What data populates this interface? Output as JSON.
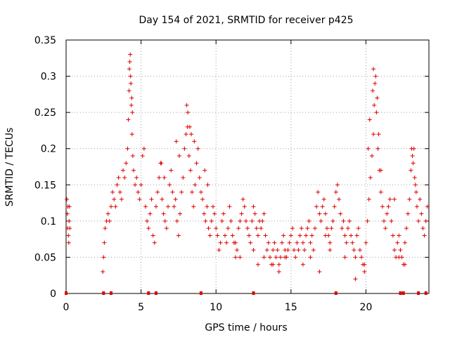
{
  "colors": {
    "series": "#dd0000",
    "grid": "#a0a0a0",
    "axis": "#000000"
  },
  "chart_data": {
    "type": "scatter",
    "title": "Day 154 of 2021, SRMTID for receiver p425",
    "xlabel": "GPS time / hours",
    "ylabel": "SRMTID / TECUs",
    "xlim": [
      0,
      24.2
    ],
    "ylim": [
      0,
      0.35
    ],
    "grid": true,
    "x_ticks": [
      0,
      5,
      10,
      15,
      20
    ],
    "x_tick_labels": [
      "0",
      "5",
      "10",
      "15",
      "20"
    ],
    "y_ticks": [
      0,
      0.05,
      0.1,
      0.15,
      0.2,
      0.25,
      0.3,
      0.35
    ],
    "y_tick_labels": [
      "0",
      "0.05",
      "0.1",
      "0.15",
      "0.2",
      "0.25",
      "0.3",
      "0.35"
    ],
    "marker": "plus",
    "series": [
      {
        "name": "SRMTID",
        "x": [
          0.05,
          0.08,
          0.1,
          0.12,
          0.15,
          0.18,
          0.2,
          0.22,
          0.25,
          2.45,
          2.5,
          2.55,
          2.6,
          2.7,
          2.8,
          2.9,
          3.0,
          3.1,
          3.2,
          3.3,
          3.4,
          3.5,
          3.6,
          3.7,
          3.8,
          3.9,
          4.0,
          4.1,
          4.15,
          4.2,
          4.25,
          4.3,
          4.35,
          4.4,
          4.45,
          4.5,
          4.6,
          4.7,
          4.8,
          4.9,
          5.0,
          5.1,
          5.2,
          5.3,
          5.4,
          5.5,
          5.6,
          5.7,
          5.8,
          5.9,
          6.0,
          6.1,
          6.2,
          6.3,
          6.4,
          6.5,
          6.6,
          6.7,
          6.8,
          6.9,
          7.0,
          7.1,
          7.2,
          7.3,
          7.4,
          7.5,
          7.6,
          7.7,
          7.8,
          7.9,
          8.0,
          8.1,
          8.2,
          8.3,
          8.4,
          8.5,
          8.6,
          8.7,
          8.8,
          8.9,
          9.0,
          9.1,
          9.2,
          9.3,
          9.4,
          9.5,
          9.6,
          9.7,
          9.8,
          9.9,
          10.0,
          10.1,
          10.2,
          10.3,
          10.4,
          10.5,
          10.6,
          10.7,
          10.8,
          10.9,
          11.0,
          11.1,
          11.2,
          11.3,
          11.4,
          11.5,
          11.6,
          11.7,
          11.8,
          11.9,
          12.0,
          12.1,
          12.2,
          12.3,
          12.4,
          12.5,
          12.6,
          12.7,
          12.8,
          12.9,
          13.0,
          13.1,
          13.2,
          13.3,
          13.4,
          13.5,
          13.6,
          13.7,
          13.8,
          13.9,
          14.0,
          14.1,
          14.2,
          14.3,
          14.4,
          14.5,
          14.6,
          14.7,
          14.8,
          14.9,
          15.0,
          15.1,
          15.2,
          15.3,
          15.4,
          15.5,
          15.6,
          15.7,
          15.8,
          15.9,
          16.0,
          16.1,
          16.2,
          16.3,
          16.4,
          16.5,
          16.6,
          16.7,
          16.8,
          16.9,
          17.0,
          17.1,
          17.2,
          17.3,
          17.4,
          17.5,
          17.6,
          17.7,
          17.8,
          17.9,
          18.0,
          18.1,
          18.2,
          18.3,
          18.4,
          18.5,
          18.6,
          18.7,
          18.8,
          18.9,
          19.0,
          19.1,
          19.2,
          19.3,
          19.4,
          19.5,
          19.6,
          19.7,
          19.8,
          19.9,
          20.0,
          20.1,
          20.2,
          20.3,
          20.4,
          20.5,
          20.55,
          20.6,
          20.65,
          20.7,
          20.8,
          20.9,
          21.0,
          21.1,
          21.2,
          21.3,
          21.4,
          21.5,
          21.6,
          21.7,
          21.8,
          21.9,
          22.0,
          22.1,
          22.2,
          22.3,
          22.4,
          22.5,
          22.6,
          22.7,
          22.8,
          22.9,
          23.0,
          23.1,
          23.2,
          23.3,
          23.4,
          23.5,
          23.6,
          23.7,
          23.8,
          23.9,
          24.0,
          24.1,
          4.22,
          4.28,
          4.32,
          4.38,
          4.42,
          6.35,
          6.55,
          7.35,
          7.55,
          8.05,
          8.12,
          8.25,
          8.35,
          8.55,
          9.25,
          9.45,
          11.3,
          11.6,
          12.5,
          12.8,
          13.2,
          13.8,
          14.2,
          14.6,
          15.8,
          16.3,
          16.9,
          17.3,
          17.6,
          18.6,
          19.3,
          19.9,
          20.15,
          20.25,
          20.45,
          20.5,
          20.75,
          20.85,
          21.0,
          21.9,
          22.2,
          22.6,
          23.05,
          23.15,
          23.25,
          23.35
        ],
        "y": [
          0.13,
          0.11,
          0.09,
          0.12,
          0.08,
          0.07,
          0.1,
          0.12,
          0.09,
          0.03,
          0.05,
          0.07,
          0.09,
          0.1,
          0.11,
          0.1,
          0.12,
          0.14,
          0.13,
          0.12,
          0.15,
          0.16,
          0.14,
          0.13,
          0.17,
          0.16,
          0.18,
          0.2,
          0.24,
          0.28,
          0.32,
          0.3,
          0.26,
          0.22,
          0.19,
          0.17,
          0.15,
          0.16,
          0.14,
          0.13,
          0.15,
          0.19,
          0.2,
          0.12,
          0.1,
          0.09,
          0.11,
          0.13,
          0.08,
          0.07,
          0.12,
          0.14,
          0.16,
          0.18,
          0.13,
          0.11,
          0.1,
          0.09,
          0.12,
          0.15,
          0.17,
          0.14,
          0.12,
          0.13,
          0.1,
          0.08,
          0.11,
          0.14,
          0.16,
          0.2,
          0.22,
          0.23,
          0.19,
          0.17,
          0.14,
          0.12,
          0.15,
          0.18,
          0.2,
          0.16,
          0.14,
          0.13,
          0.11,
          0.1,
          0.12,
          0.09,
          0.08,
          0.1,
          0.12,
          0.11,
          0.09,
          0.08,
          0.06,
          0.07,
          0.1,
          0.11,
          0.08,
          0.07,
          0.09,
          0.12,
          0.1,
          0.08,
          0.07,
          0.05,
          0.06,
          0.09,
          0.1,
          0.11,
          0.13,
          0.12,
          0.1,
          0.09,
          0.08,
          0.07,
          0.1,
          0.12,
          0.11,
          0.09,
          0.08,
          0.1,
          0.09,
          0.1,
          0.11,
          0.08,
          0.06,
          0.07,
          0.05,
          0.04,
          0.06,
          0.07,
          0.05,
          0.06,
          0.04,
          0.05,
          0.07,
          0.08,
          0.06,
          0.05,
          0.06,
          0.07,
          0.08,
          0.09,
          0.06,
          0.05,
          0.07,
          0.06,
          0.08,
          0.09,
          0.07,
          0.06,
          0.08,
          0.09,
          0.1,
          0.07,
          0.08,
          0.06,
          0.09,
          0.12,
          0.14,
          0.11,
          0.1,
          0.12,
          0.13,
          0.11,
          0.09,
          0.08,
          0.07,
          0.09,
          0.1,
          0.12,
          0.14,
          0.15,
          0.13,
          0.11,
          0.09,
          0.1,
          0.08,
          0.07,
          0.09,
          0.1,
          0.08,
          0.07,
          0.06,
          0.05,
          0.08,
          0.09,
          0.06,
          0.05,
          0.04,
          0.03,
          0.07,
          0.1,
          0.13,
          0.16,
          0.19,
          0.22,
          0.26,
          0.29,
          0.3,
          0.25,
          0.2,
          0.17,
          0.14,
          0.12,
          0.1,
          0.09,
          0.11,
          0.12,
          0.13,
          0.1,
          0.08,
          0.06,
          0.05,
          0.07,
          0.08,
          0.06,
          0.05,
          0.04,
          0.07,
          0.09,
          0.11,
          0.13,
          0.17,
          0.19,
          0.2,
          0.15,
          0.12,
          0.1,
          0.13,
          0.11,
          0.09,
          0.08,
          0.1,
          0.12,
          0.31,
          0.33,
          0.29,
          0.27,
          0.25,
          0.18,
          0.16,
          0.21,
          0.19,
          0.26,
          0.25,
          0.23,
          0.22,
          0.21,
          0.17,
          0.15,
          0.07,
          0.05,
          0.06,
          0.04,
          0.05,
          0.04,
          0.03,
          0.05,
          0.04,
          0.05,
          0.03,
          0.08,
          0.06,
          0.05,
          0.02,
          0.04,
          0.2,
          0.24,
          0.28,
          0.31,
          0.27,
          0.22,
          0.17,
          0.13,
          0.05,
          0.04,
          0.2,
          0.18,
          0.16,
          0.14
        ],
        "zeros_x": [
          0.0,
          2.5,
          3.0,
          5.5,
          6.0,
          9.0,
          12.5,
          18.0,
          22.3,
          22.5,
          23.5,
          24.0
        ]
      }
    ]
  }
}
